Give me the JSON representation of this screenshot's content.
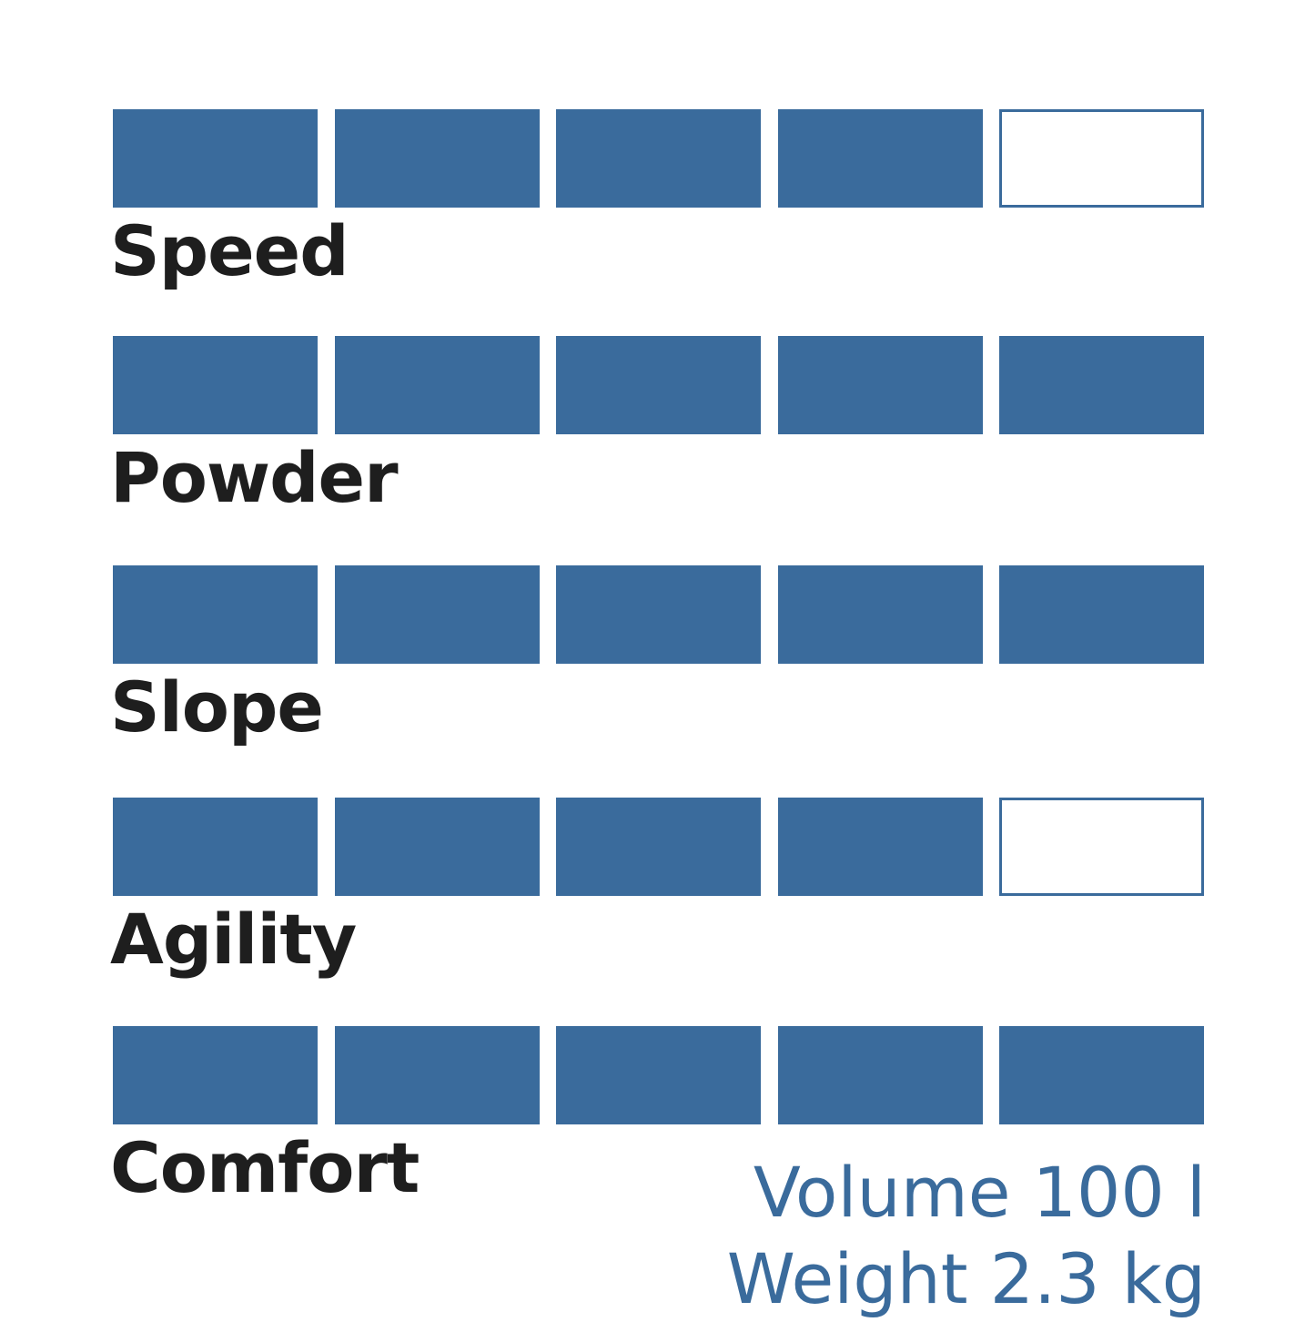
{
  "chart_data": {
    "type": "rating",
    "max": 5,
    "categories": [
      "Speed",
      "Powder",
      "Slope",
      "Agility",
      "Comfort"
    ],
    "values": [
      4,
      5,
      5,
      4,
      5
    ],
    "color": "#3a6b9c"
  },
  "specs": {
    "volume": "Volume 100 l",
    "weight": "Weight 2.3 kg"
  }
}
